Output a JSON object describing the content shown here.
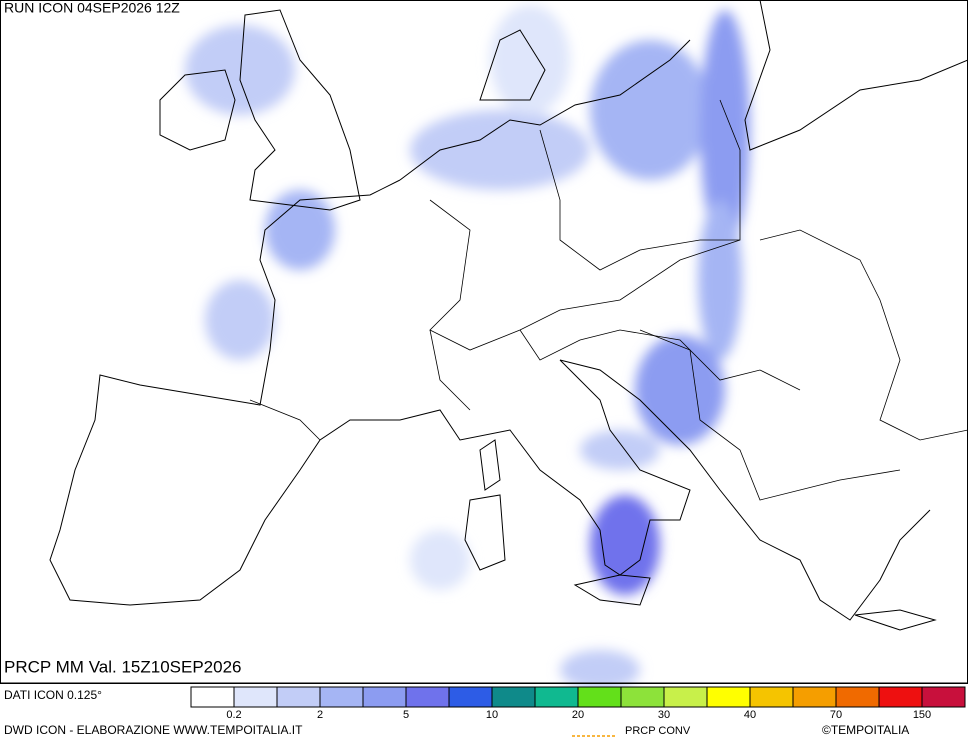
{
  "header": {
    "run": "RUN ICON 04SEP2026 12Z"
  },
  "map": {
    "valid": "PRCP MM Val. 15Z10SEP2026"
  },
  "legend": {
    "colors": [
      "#ffffff",
      "#dfe6fb",
      "#c2cdf7",
      "#a5b5f4",
      "#8c9cf1",
      "#6f72ec",
      "#2d5ce6",
      "#0f8a8a",
      "#10b990",
      "#63e01a",
      "#8de23a",
      "#c8f04a",
      "#ffff00",
      "#f5c400",
      "#f59e00",
      "#f06a00",
      "#ee1010",
      "#c8103c"
    ],
    "labels": [
      "0.2",
      "2",
      "5",
      "10",
      "20",
      "30",
      "40",
      "70",
      "150"
    ]
  },
  "footer": {
    "data_source": "DATI ICON 0.125°",
    "credit": "DWD ICON - ELABORAZIONE WWW.TEMPOITALIA.IT",
    "conv_label": "PRCP CONV",
    "copyright": "©TEMPOITALIA"
  }
}
